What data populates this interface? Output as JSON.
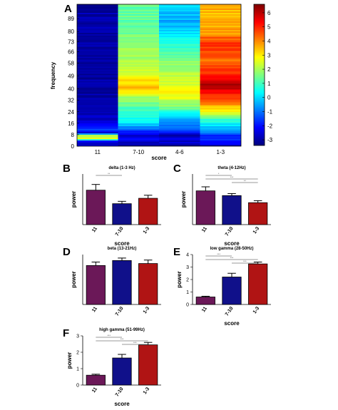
{
  "colorbar": {
    "ticks": [
      "6",
      "5",
      "4",
      "3",
      "2",
      "1",
      "0",
      "-1",
      "-2",
      "-3"
    ],
    "min": -3.4,
    "max": 6.6
  },
  "chart_data": [
    {
      "panel": "A",
      "type": "heatmap",
      "xlabel": "score",
      "ylabel": "frequency",
      "categories": [
        "11",
        "7-10",
        "4-6",
        "1-3"
      ],
      "ytick_labels": [
        "89",
        "80",
        "73",
        "66",
        "58",
        "49",
        "40",
        "32",
        "24",
        "16",
        "8",
        "0"
      ],
      "yticks": [
        89,
        80,
        73,
        66,
        58,
        49,
        40,
        32,
        24,
        16,
        8,
        0
      ],
      "ylim": [
        0,
        99
      ],
      "color_range": [
        -3.4,
        6.6
      ],
      "colorbar_ticks": [
        6,
        5,
        4,
        3,
        2,
        1,
        0,
        -1,
        -2,
        -3
      ],
      "profiles": {
        "11": [
          [
            0,
            -2.8
          ],
          [
            3,
            -2.4
          ],
          [
            4.5,
            2.5
          ],
          [
            7,
            2.5
          ],
          [
            8.5,
            -2.6
          ],
          [
            11,
            -1.3
          ],
          [
            13,
            -1.8
          ],
          [
            17,
            -2.6
          ],
          [
            35,
            -3.0
          ],
          [
            70,
            -3.1
          ],
          [
            99,
            -3.0
          ]
        ],
        "7-10": [
          [
            0,
            -2.9
          ],
          [
            4,
            -2.3
          ],
          [
            7,
            -2.8
          ],
          [
            10,
            -1.6
          ],
          [
            14,
            -0.4
          ],
          [
            17,
            0.3
          ],
          [
            22,
            0.8
          ],
          [
            28,
            1.2
          ],
          [
            34,
            2.0
          ],
          [
            40,
            3.6
          ],
          [
            45,
            3.2
          ],
          [
            52,
            2.5
          ],
          [
            62,
            2.0
          ],
          [
            72,
            1.7
          ],
          [
            82,
            1.4
          ],
          [
            92,
            1.3
          ],
          [
            99,
            1.3
          ]
        ],
        "4-6": [
          [
            0,
            -2.9
          ],
          [
            4,
            -2.5
          ],
          [
            7,
            -2.8
          ],
          [
            10,
            -1.4
          ],
          [
            14,
            -1.0
          ],
          [
            18,
            -0.6
          ],
          [
            22,
            0.5
          ],
          [
            26,
            1.3
          ],
          [
            31,
            2.2
          ],
          [
            38,
            3.0
          ],
          [
            44,
            2.4
          ],
          [
            50,
            2.1
          ],
          [
            58,
            1.7
          ],
          [
            65,
            1.3
          ],
          [
            72,
            0.6
          ],
          [
            80,
            0.0
          ],
          [
            87,
            -0.6
          ],
          [
            93,
            -0.2
          ],
          [
            99,
            0.2
          ]
        ],
        "1-3": [
          [
            0,
            -2.8
          ],
          [
            4,
            -1.4
          ],
          [
            7,
            -1.9
          ],
          [
            11,
            -0.4
          ],
          [
            16,
            0.3
          ],
          [
            20,
            1.5
          ],
          [
            26,
            3.3
          ],
          [
            32,
            4.4
          ],
          [
            38,
            5.4
          ],
          [
            41,
            6.3
          ],
          [
            46,
            5.6
          ],
          [
            52,
            4.9
          ],
          [
            60,
            4.2
          ],
          [
            66,
            4.6
          ],
          [
            72,
            4.9
          ],
          [
            80,
            3.8
          ],
          [
            88,
            3.5
          ],
          [
            95,
            3.6
          ],
          [
            99,
            3.7
          ]
        ]
      }
    },
    {
      "panel": "B",
      "type": "bar",
      "title": "delta (1-3 Hz)",
      "categories": [
        "11",
        "7-10",
        "1-3"
      ],
      "values": [
        1.02,
        0.62,
        0.78
      ],
      "errors": [
        0.17,
        0.07,
        0.09
      ],
      "ylabel": "power",
      "xlabel": "score",
      "ylim": [
        0,
        1.5
      ],
      "yticks": [],
      "ytick_labels": [],
      "sig_bars": [
        {
          "from": 0,
          "to": 1,
          "label": "**"
        }
      ]
    },
    {
      "panel": "C",
      "type": "bar",
      "title": "theta (4-12Hz)",
      "categories": [
        "11",
        "7-10",
        "1-3"
      ],
      "values": [
        1.0,
        0.86,
        0.65
      ],
      "errors": [
        0.12,
        0.06,
        0.06
      ],
      "ylabel": "power",
      "xlabel": "score",
      "ylim": [
        0,
        1.5
      ],
      "yticks": [],
      "ytick_labels": [],
      "sig_bars": [
        {
          "from": 0,
          "to": 1,
          "label": "*"
        },
        {
          "from": 0,
          "to": 2,
          "label": "***"
        },
        {
          "from": 1,
          "to": 2,
          "label": "**"
        }
      ]
    },
    {
      "panel": "D",
      "type": "bar",
      "title": "beta (13-21Hz)",
      "categories": [
        "11",
        "7-10",
        "1-3"
      ],
      "values": [
        0.78,
        0.88,
        0.82
      ],
      "errors": [
        0.07,
        0.05,
        0.07
      ],
      "ylabel": "power",
      "xlabel": "",
      "ylim": [
        0,
        1.0
      ],
      "yticks": [],
      "ytick_labels": [],
      "sig_bars": []
    },
    {
      "panel": "E",
      "type": "bar",
      "title": "low gamma (28-50Hz)",
      "categories": [
        "11",
        "7-10",
        "1-3"
      ],
      "values": [
        0.6,
        2.2,
        3.25
      ],
      "errors": [
        0.06,
        0.3,
        0.15
      ],
      "ylabel": "power",
      "xlabel": "score",
      "ylim": [
        0,
        4
      ],
      "yticks": [
        0,
        1,
        2,
        3,
        4
      ],
      "ytick_labels": [
        "0",
        "1",
        "2",
        "3",
        "4"
      ],
      "sig_bars": [
        {
          "from": 0,
          "to": 1,
          "label": "***"
        },
        {
          "from": 0,
          "to": 2,
          "label": "***"
        },
        {
          "from": 1,
          "to": 2,
          "label": "***"
        }
      ]
    },
    {
      "panel": "F",
      "type": "bar",
      "title": "high gamma (51-99Hz)",
      "categories": [
        "11",
        "7-10",
        "1-3"
      ],
      "values": [
        0.6,
        1.65,
        2.45
      ],
      "errors": [
        0.06,
        0.22,
        0.15
      ],
      "ylabel": "power",
      "xlabel": "score",
      "ylim": [
        0,
        3
      ],
      "yticks": [
        0,
        1,
        2,
        3
      ],
      "ytick_labels": [
        "0",
        "1",
        "2",
        "3"
      ],
      "sig_bars": [
        {
          "from": 0,
          "to": 1,
          "label": "***"
        },
        {
          "from": 0,
          "to": 2,
          "label": "***"
        },
        {
          "from": 1,
          "to": 2,
          "label": "***"
        }
      ]
    }
  ],
  "bar_colors": [
    "#6b1858",
    "#10108a",
    "#b01414"
  ],
  "outline_color": "#000000"
}
